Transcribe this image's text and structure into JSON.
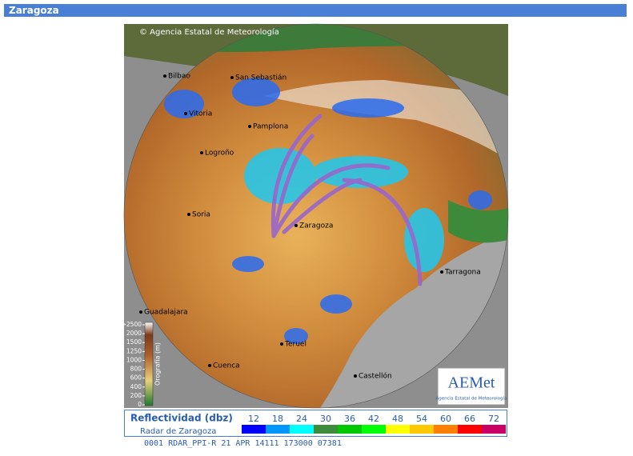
{
  "header": {
    "title": "Zaragoza"
  },
  "map": {
    "credit": "© Agencia Estatal de Meteorología",
    "places": [
      "Bilbao",
      "San Sebastián",
      "Vitoria",
      "Pamplona",
      "Logroño",
      "Soria",
      "Zaragoza",
      "Tarragona",
      "Guadalajara",
      "Teruel",
      "Cuenca",
      "Castellón"
    ],
    "orography": {
      "title": "Orografía (m)",
      "ticks": [
        {
          "value": 2500,
          "label": ">2500"
        },
        2000,
        1500,
        1250,
        1000,
        800,
        600,
        400,
        200,
        0
      ]
    },
    "logo": {
      "text": "AEMet",
      "subtitle": "Agencia Estatal de Meteorología"
    }
  },
  "legend": {
    "title": "Reflectividad (dbz)",
    "subtitle": "Radar de Zaragoza",
    "values": [
      12,
      18,
      24,
      30,
      36,
      42,
      48,
      54,
      60,
      66,
      72
    ],
    "colors": [
      "#0000ff",
      "#0096ff",
      "#00ffff",
      "#3c8c3c",
      "#00c800",
      "#00ff00",
      "#ffff00",
      "#ffc800",
      "#ff8000",
      "#ff0000",
      "#c80064"
    ]
  },
  "status": "0001 RDAR_PPI-R   21 APR 14111 173000 07381"
}
